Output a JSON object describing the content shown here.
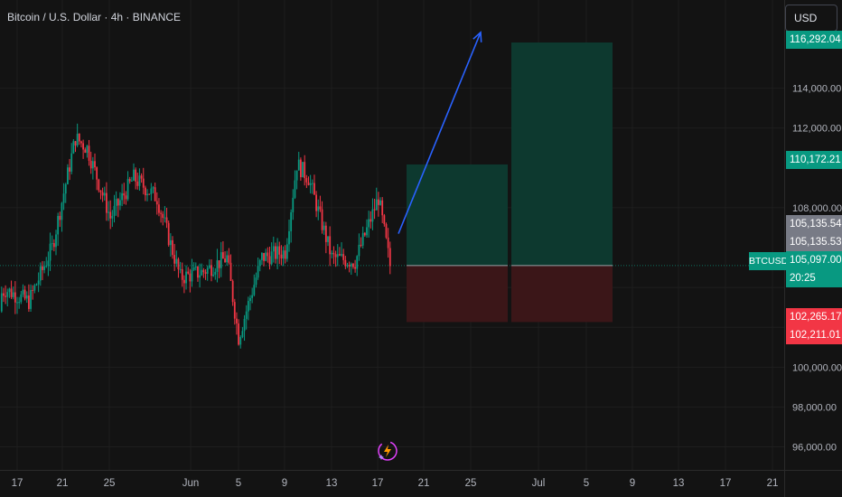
{
  "header": {
    "title": "Bitcoin / U.S. Dollar · 4h · BINANCE"
  },
  "currency_button": {
    "label": "USD"
  },
  "ticker_label": "BTCUSD",
  "price_badges": {
    "target": "116,292.04",
    "target_mid": "110,172.21",
    "high_a": "105,135.54",
    "high_b": "105,135.53",
    "current": "105,097.00",
    "countdown": "20:25",
    "stop_a": "102,265.17",
    "stop_b": "102,211.01"
  },
  "colors": {
    "background": "#131313",
    "up": "#089981",
    "down": "#f23645",
    "arrow": "#2962ff",
    "grid": "#1e1e1e",
    "profit_zone": "#0d3b30",
    "loss_zone": "#3b1618"
  },
  "icons": {
    "assistant": "lightning-sparkle-icon"
  },
  "chart_data": {
    "type": "candlestick",
    "title": "Bitcoin / U.S. Dollar · 4h · BINANCE",
    "y_ticks": [
      96000,
      98000,
      100000,
      102000,
      104000,
      108000,
      112000,
      114000
    ],
    "y_tick_labels": [
      "96,000.00",
      "98,000.00",
      "100,000.00",
      "",
      "",
      "108,000.00",
      "112,000.00",
      "114,000.00"
    ],
    "ylim": [
      94800,
      117200
    ],
    "x_tick_labels": [
      "17",
      "21",
      "25",
      "Jun",
      "5",
      "9",
      "13",
      "17",
      "21",
      "25",
      "Jul",
      "5",
      "9",
      "13",
      "17",
      "21"
    ],
    "price_path": [
      {
        "x": "May 14",
        "y": 102800
      },
      {
        "x": "May 16",
        "y": 103900
      },
      {
        "x": "May 18",
        "y": 103300
      },
      {
        "x": "May 20",
        "y": 106000
      },
      {
        "x": "May 22",
        "y": 111500
      },
      {
        "x": "May 23",
        "y": 111000
      },
      {
        "x": "May 25",
        "y": 107500
      },
      {
        "x": "May 27",
        "y": 109500
      },
      {
        "x": "May 29",
        "y": 108500
      },
      {
        "x": "May 31",
        "y": 104500
      },
      {
        "x": "Jun 2",
        "y": 104800
      },
      {
        "x": "Jun 4",
        "y": 105500
      },
      {
        "x": "Jun 5",
        "y": 101500
      },
      {
        "x": "Jun 7",
        "y": 105500
      },
      {
        "x": "Jun 9",
        "y": 105800
      },
      {
        "x": "Jun 10",
        "y": 110200
      },
      {
        "x": "Jun 11",
        "y": 109500
      },
      {
        "x": "Jun 13",
        "y": 105500
      },
      {
        "x": "Jun 15",
        "y": 105300
      },
      {
        "x": "Jun 17",
        "y": 108500
      },
      {
        "x": "Jun 18",
        "y": 105100
      }
    ],
    "position": {
      "entry": 105097.0,
      "targets": [
        110172.21,
        116292.04
      ],
      "stop": 102265.17
    },
    "current_price": 105097.0,
    "grid": true
  }
}
